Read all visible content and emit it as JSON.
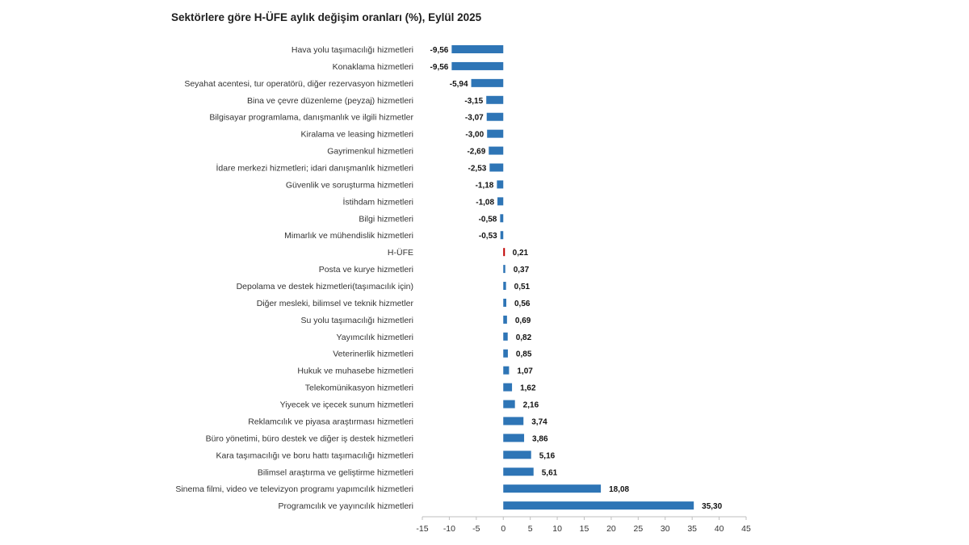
{
  "chart_data": {
    "type": "bar",
    "orientation": "horizontal",
    "title": "Sektörlere göre H-ÜFE aylık değişim oranları (%), Eylül 2025",
    "xlabel": "",
    "ylabel": "",
    "xlim": [
      -15,
      45
    ],
    "ticks": [
      -15,
      -10,
      -5,
      0,
      5,
      10,
      15,
      20,
      25,
      30,
      35,
      40,
      45
    ],
    "tick_labels": [
      "-15",
      "-10",
      "-5",
      "0",
      "5",
      "10",
      "15",
      "20",
      "25",
      "30",
      "35",
      "40",
      "45"
    ],
    "grid": false,
    "legend": "none",
    "bar_color": "#2e75b6",
    "highlight_color": "#c00000",
    "highlight_category": "H-ÜFE",
    "categories": [
      "Hava yolu taşımacılığı hizmetleri",
      "Konaklama hizmetleri",
      "Seyahat acentesi, tur operatörü, diğer rezervasyon hizmetleri",
      "Bina ve çevre düzenleme (peyzaj) hizmetleri",
      "Bilgisayar programlama, danışmanlık ve ilgili hizmetler",
      "Kiralama ve leasing hizmetleri",
      "Gayrimenkul hizmetleri",
      "İdare merkezi hizmetleri; idari danışmanlık hizmetleri",
      "Güvenlik ve soruşturma hizmetleri",
      "İstihdam hizmetleri",
      "Bilgi hizmetleri",
      "Mimarlık ve mühendislik hizmetleri",
      "H-ÜFE",
      "Posta ve kurye hizmetleri",
      "Depolama ve destek hizmetleri(taşımacılık için)",
      "Diğer mesleki, bilimsel ve teknik hizmetler",
      "Su yolu taşımacılığı hizmetleri",
      "Yayımcılık hizmetleri",
      "Veterinerlik hizmetleri",
      "Hukuk ve muhasebe hizmetleri",
      "Telekomünikasyon hizmetleri",
      "Yiyecek ve içecek sunum hizmetleri",
      "Reklamcılık ve piyasa araştırması hizmetleri",
      "Büro yönetimi, büro destek ve diğer iş destek hizmetleri",
      "Kara taşımacılığı ve boru hattı taşımacılığı hizmetleri",
      "Bilimsel araştırma ve geliştirme hizmetleri",
      "Sinema filmi, video ve televizyon programı yapımcılık hizmetleri",
      "Programcılık ve yayıncılık hizmetleri"
    ],
    "values": [
      -9.56,
      -9.56,
      -5.94,
      -3.15,
      -3.07,
      -3.0,
      -2.69,
      -2.53,
      -1.18,
      -1.08,
      -0.58,
      -0.53,
      0.21,
      0.37,
      0.51,
      0.56,
      0.69,
      0.82,
      0.85,
      1.07,
      1.62,
      2.16,
      3.74,
      3.86,
      5.16,
      5.61,
      18.08,
      35.3
    ],
    "value_labels": [
      "-9,56",
      "-9,56",
      "-5,94",
      "-3,15",
      "-3,07",
      "-3,00",
      "-2,69",
      "-2,53",
      "-1,18",
      "-1,08",
      "-0,58",
      "-0,53",
      "0,21",
      "0,37",
      "0,51",
      "0,56",
      "0,69",
      "0,82",
      "0,85",
      "1,07",
      "1,62",
      "2,16",
      "3,74",
      "3,86",
      "5,16",
      "5,61",
      "18,08",
      "35,30"
    ]
  }
}
